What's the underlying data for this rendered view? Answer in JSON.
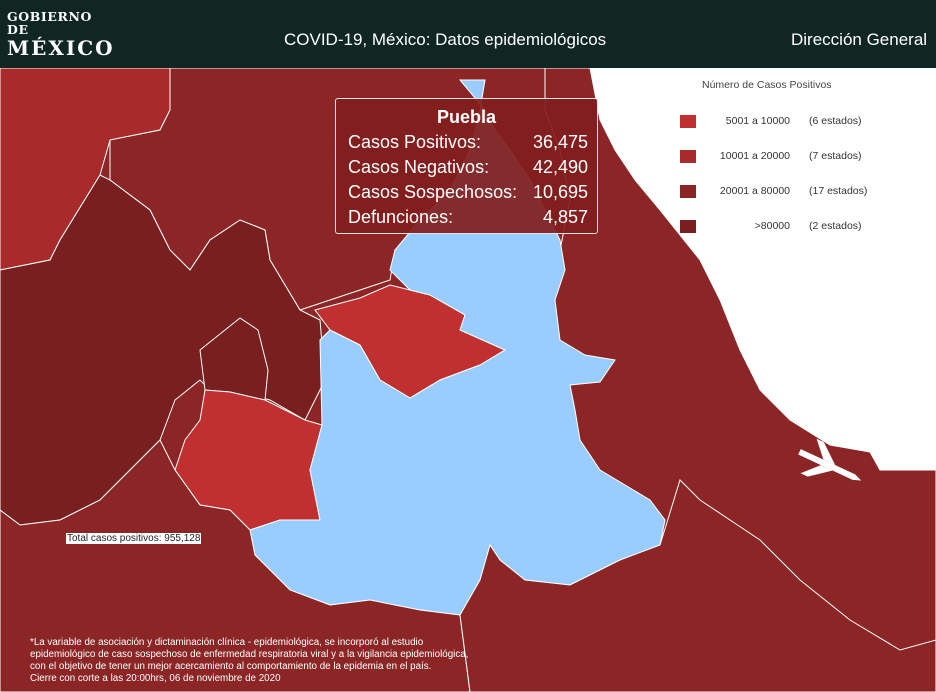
{
  "header": {
    "logo_line1": "GOBIERNO DE",
    "logo_line2": "MÉXICO",
    "title": "COVID-19, México: Datos epidemiológicos",
    "right_text": "Dirección General"
  },
  "legend": {
    "title": "Número de Casos Positivos",
    "items": [
      {
        "range": "5001 a  10000",
        "count": "(6 estados)",
        "color": "#c03030"
      },
      {
        "range": "10001 a  20000",
        "count": "(7 estados)",
        "color": "#a82a2a"
      },
      {
        "range": "20001 a  80000",
        "count": "(17 estados)",
        "color": "#8c2626"
      },
      {
        "range": ">80000",
        "count": "(2 estados)",
        "color": "#7a1f1f"
      }
    ]
  },
  "tooltip": {
    "state": "Puebla",
    "rows": [
      {
        "label": "Casos Positivos:",
        "value": "36,475"
      },
      {
        "label": "Casos Negativos:",
        "value": "42,490"
      },
      {
        "label": "Casos Sospechosos:",
        "value": "10,695"
      },
      {
        "label": "Defunciones:",
        "value": "4,857"
      }
    ]
  },
  "total_label": "Total casos positivos: 955,128",
  "footnote": [
    "*La variable de asociación y dictaminación clínica - epidemiológica, se incorporó al estudio",
    "epidemiológico de caso sospechoso de enfermedad respiratoria viral y a la vigilancia epidemiológica,",
    "con el objetivo de tener un mejor acercamiento al comportamiento de la epidemia en el país.",
    "Cierre con corte a las 20:00hrs, 06 de noviembre de 2020"
  ],
  "colors": {
    "header_bg": "#0f2622",
    "highlight_state": "#99ccff",
    "sea": "#ffffff",
    "state_default": "#8c2626"
  }
}
